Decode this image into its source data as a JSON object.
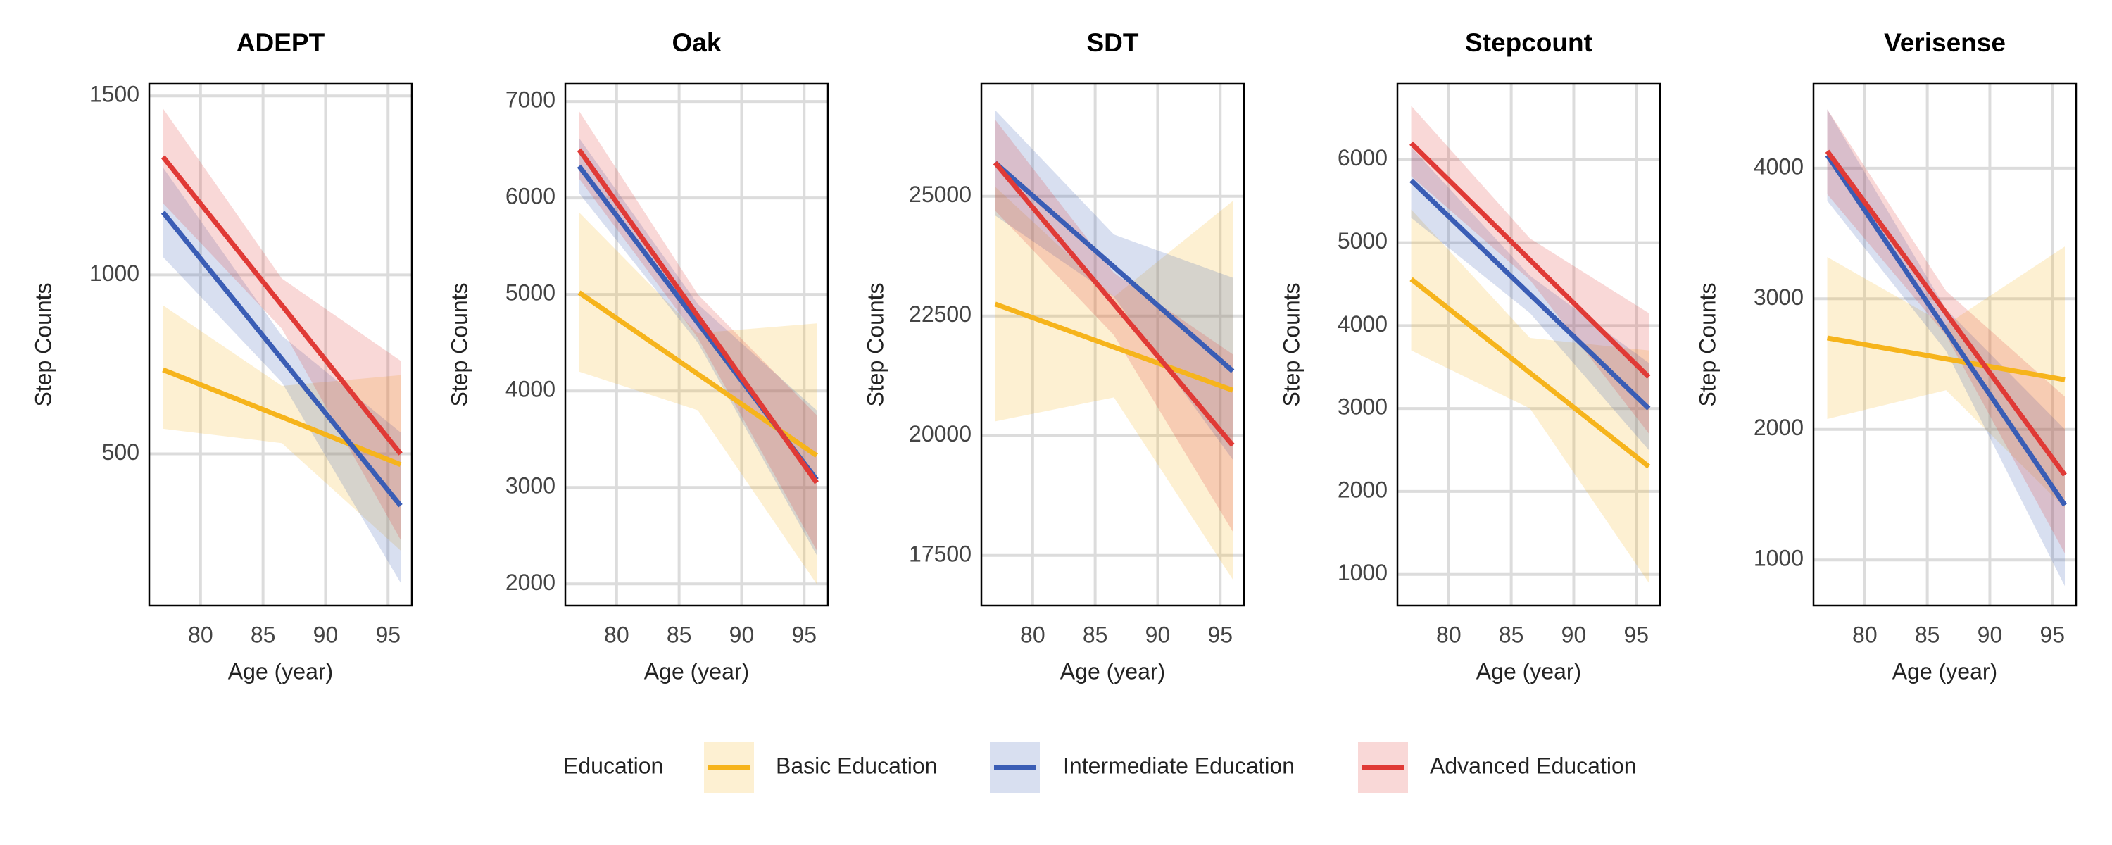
{
  "legend": {
    "title": "Education"
  },
  "chart_data": [
    {
      "type": "line",
      "title": "ADEPT",
      "x_label": "Age (year)",
      "y_label": "Step Counts",
      "grid": true,
      "x": [
        77,
        86.5,
        96
      ],
      "xlim": [
        75.9,
        96.9
      ],
      "xticks": [
        80,
        85,
        90,
        95
      ],
      "ylim": [
        76,
        1534
      ],
      "yticks": [
        500,
        1000,
        1500
      ],
      "series": [
        {
          "name": "Basic Education",
          "color": "#f6b41c",
          "values": [
            735,
            603,
            470
          ],
          "lower": [
            570,
            530,
            230
          ],
          "upper": [
            915,
            690,
            720
          ]
        },
        {
          "name": "Intermediate Education",
          "color": "#3a5db5",
          "values": [
            1175,
            765,
            355
          ],
          "lower": [
            1050,
            700,
            140
          ],
          "upper": [
            1300,
            830,
            560
          ]
        },
        {
          "name": "Advanced Education",
          "color": "#e03a36",
          "values": [
            1330,
            915,
            500
          ],
          "lower": [
            1200,
            850,
            260
          ],
          "upper": [
            1465,
            990,
            760
          ]
        }
      ]
    },
    {
      "type": "line",
      "title": "Oak",
      "x_label": "Age (year)",
      "y_label": "Step Counts",
      "grid": true,
      "x": [
        77,
        86.5,
        96
      ],
      "xlim": [
        75.9,
        96.9
      ],
      "xticks": [
        80,
        85,
        90,
        95
      ],
      "ylim": [
        1776,
        7183
      ],
      "yticks": [
        2000,
        3000,
        4000,
        5000,
        6000,
        7000
      ],
      "series": [
        {
          "name": "Basic Education",
          "color": "#f6b41c",
          "values": [
            5020,
            4175,
            3330
          ],
          "lower": [
            4200,
            3800,
            2000
          ],
          "upper": [
            5850,
            4600,
            4700
          ]
        },
        {
          "name": "Intermediate Education",
          "color": "#3a5db5",
          "values": [
            6330,
            4705,
            3080
          ],
          "lower": [
            6050,
            4500,
            2300
          ],
          "upper": [
            6620,
            4900,
            3800
          ]
        },
        {
          "name": "Advanced Education",
          "color": "#e03a36",
          "values": [
            6500,
            4775,
            3050
          ],
          "lower": [
            6200,
            4550,
            2350
          ],
          "upper": [
            6900,
            5000,
            3750
          ]
        }
      ]
    },
    {
      "type": "line",
      "title": "SDT",
      "x_label": "Age (year)",
      "y_label": "Step Counts",
      "grid": true,
      "x": [
        77,
        86.5,
        96
      ],
      "xlim": [
        75.9,
        96.9
      ],
      "xticks": [
        80,
        85,
        90,
        95
      ],
      "ylim": [
        16453,
        27349
      ],
      "yticks": [
        17500,
        20000,
        22500,
        25000
      ],
      "series": [
        {
          "name": "Basic Education",
          "color": "#f6b41c",
          "values": [
            22750,
            21850,
            20950
          ],
          "lower": [
            20300,
            20800,
            17000
          ],
          "upper": [
            25200,
            22900,
            24900
          ]
        },
        {
          "name": "Intermediate Education",
          "color": "#3a5db5",
          "values": [
            25700,
            23525,
            21350
          ],
          "lower": [
            24600,
            22900,
            19500
          ],
          "upper": [
            26800,
            24200,
            23300
          ]
        },
        {
          "name": "Advanced Education",
          "color": "#e03a36",
          "values": [
            25700,
            22750,
            19800
          ],
          "lower": [
            24700,
            22100,
            18000
          ],
          "upper": [
            26600,
            23400,
            21700
          ]
        }
      ]
    },
    {
      "type": "line",
      "title": "Stepcount",
      "x_label": "Age (year)",
      "y_label": "Step Counts",
      "grid": true,
      "x": [
        77,
        86.5,
        96
      ],
      "xlim": [
        75.9,
        96.9
      ],
      "xticks": [
        80,
        85,
        90,
        95
      ],
      "ylim": [
        624,
        6915
      ],
      "yticks": [
        1000,
        2000,
        3000,
        4000,
        5000,
        6000
      ],
      "series": [
        {
          "name": "Basic Education",
          "color": "#f6b41c",
          "values": [
            4560,
            3430,
            2300
          ],
          "lower": [
            3700,
            3000,
            900
          ],
          "upper": [
            5400,
            3850,
            3700
          ]
        },
        {
          "name": "Intermediate Education",
          "color": "#3a5db5",
          "values": [
            5750,
            4375,
            3000
          ],
          "lower": [
            5300,
            4150,
            2500
          ],
          "upper": [
            6150,
            4600,
            3550
          ]
        },
        {
          "name": "Advanced Education",
          "color": "#e03a36",
          "values": [
            6200,
            4790,
            3380
          ],
          "lower": [
            5800,
            4550,
            2700
          ],
          "upper": [
            6650,
            5050,
            4150
          ]
        }
      ]
    },
    {
      "type": "line",
      "title": "Verisense",
      "x_label": "Age (year)",
      "y_label": "Step Counts",
      "grid": true,
      "x": [
        77,
        86.5,
        96
      ],
      "xlim": [
        75.9,
        96.9
      ],
      "xticks": [
        80,
        85,
        90,
        95
      ],
      "ylim": [
        651,
        4646
      ],
      "yticks": [
        1000,
        2000,
        3000,
        4000
      ],
      "series": [
        {
          "name": "Basic Education",
          "color": "#f6b41c",
          "values": [
            2700,
            2540,
            2380
          ],
          "lower": [
            2080,
            2300,
            1400
          ],
          "upper": [
            3320,
            2800,
            3400
          ]
        },
        {
          "name": "Intermediate Education",
          "color": "#3a5db5",
          "values": [
            4100,
            2760,
            1420
          ],
          "lower": [
            3750,
            2600,
            800
          ],
          "upper": [
            4450,
            2920,
            2000
          ]
        },
        {
          "name": "Advanced Education",
          "color": "#e03a36",
          "values": [
            4130,
            2890,
            1650
          ],
          "lower": [
            3800,
            2720,
            1050
          ],
          "upper": [
            4450,
            3060,
            2250
          ]
        }
      ]
    }
  ]
}
